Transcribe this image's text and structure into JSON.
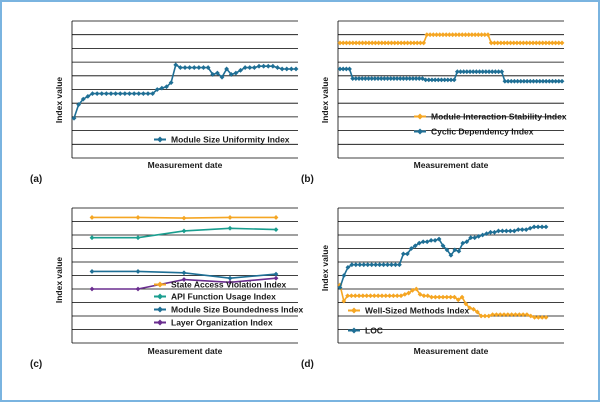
{
  "figure": {
    "border_color": "#7ab4e0",
    "panel_labels": [
      "(a)",
      "(b)",
      "(c)",
      "(d)"
    ]
  },
  "chart_data": [
    {
      "panel": "(a)",
      "type": "line",
      "xlabel": "Measurement date",
      "ylabel": "Index value",
      "grid": true,
      "legend_position": "bottom",
      "ylim": [
        0,
        10
      ],
      "series": [
        {
          "name": "Module Size Uniformity Index",
          "color": "#1f6f95",
          "marker": "diamond",
          "values": [
            2.9,
            3.9,
            4.3,
            4.5,
            4.7,
            4.7,
            4.7,
            4.7,
            4.7,
            4.7,
            4.7,
            4.7,
            4.7,
            4.7,
            4.7,
            4.7,
            4.7,
            4.7,
            5.0,
            5.1,
            5.2,
            5.5,
            6.8,
            6.6,
            6.6,
            6.6,
            6.6,
            6.6,
            6.6,
            6.6,
            6.1,
            6.2,
            5.9,
            6.5,
            6.1,
            6.2,
            6.4,
            6.6,
            6.6,
            6.6,
            6.7,
            6.7,
            6.7,
            6.7,
            6.6,
            6.5,
            6.5,
            6.5,
            6.5
          ]
        }
      ]
    },
    {
      "panel": "(b)",
      "type": "line",
      "xlabel": "Measurement date",
      "ylabel": "Index value",
      "grid": true,
      "legend_position": "bottom",
      "ylim": [
        0,
        10
      ],
      "series": [
        {
          "name": "Module Interaction Stability Index",
          "color": "#f5a623",
          "marker": "diamond",
          "values": [
            8.4,
            8.4,
            8.4,
            8.4,
            8.4,
            8.4,
            8.4,
            8.4,
            8.4,
            8.4,
            8.4,
            8.4,
            8.4,
            8.4,
            8.4,
            8.4,
            8.4,
            8.4,
            8.4,
            8.4,
            8.4,
            8.4,
            8.4,
            8.4,
            8.4,
            8.4,
            8.4,
            9.0,
            9.0,
            9.0,
            9.0,
            9.0,
            9.0,
            9.0,
            9.0,
            9.0,
            9.0,
            9.0,
            9.0,
            9.0,
            9.0,
            9.0,
            9.0,
            9.0,
            9.0,
            9.0,
            9.0,
            8.4,
            8.4,
            8.4,
            8.4,
            8.4,
            8.4,
            8.4,
            8.4,
            8.4,
            8.4,
            8.4,
            8.4,
            8.4,
            8.4,
            8.4,
            8.4,
            8.4,
            8.4,
            8.4,
            8.4,
            8.4,
            8.4,
            8.4
          ]
        },
        {
          "name": "Cyclic Dependency Index",
          "color": "#1f6f95",
          "marker": "diamond",
          "values": [
            6.5,
            6.5,
            6.5,
            6.5,
            5.8,
            5.8,
            5.8,
            5.8,
            5.8,
            5.8,
            5.8,
            5.8,
            5.8,
            5.8,
            5.8,
            5.8,
            5.8,
            5.8,
            5.8,
            5.8,
            5.8,
            5.8,
            5.8,
            5.8,
            5.8,
            5.8,
            5.8,
            5.7,
            5.7,
            5.7,
            5.7,
            5.7,
            5.7,
            5.7,
            5.7,
            5.7,
            5.7,
            6.3,
            6.3,
            6.3,
            6.3,
            6.3,
            6.3,
            6.3,
            6.3,
            6.3,
            6.3,
            6.3,
            6.3,
            6.3,
            6.3,
            6.3,
            5.6,
            5.6,
            5.6,
            5.6,
            5.6,
            5.6,
            5.6,
            5.6,
            5.6,
            5.6,
            5.6,
            5.6,
            5.6,
            5.6,
            5.6,
            5.6,
            5.6,
            5.6,
            5.6
          ]
        }
      ]
    },
    {
      "panel": "(c)",
      "type": "line",
      "xlabel": "Measurement date",
      "ylabel": "Index value",
      "grid": true,
      "legend_position": "bottom",
      "ylim": [
        0,
        10
      ],
      "series": [
        {
          "name": "State Access Violation Index",
          "color": "#f5a623",
          "marker": "diamond",
          "values": [
            9.3,
            9.3,
            9.25,
            9.3,
            9.3
          ]
        },
        {
          "name": "API Function Usage Index",
          "color": "#1a9e8f",
          "marker": "diamond",
          "values": [
            7.8,
            7.8,
            8.3,
            8.5,
            8.4
          ]
        },
        {
          "name": "Module Size Boundedness Index",
          "color": "#1f6f95",
          "marker": "diamond",
          "values": [
            5.3,
            5.3,
            5.2,
            4.8,
            5.1
          ]
        },
        {
          "name": "Layer Organization Index",
          "color": "#6a2d8f",
          "marker": "diamond",
          "values": [
            4.0,
            4.0,
            4.7,
            4.5,
            4.8
          ]
        }
      ]
    },
    {
      "panel": "(d)",
      "type": "line",
      "xlabel": "Measurement date",
      "ylabel": "Index value",
      "grid": true,
      "legend_position": "bottom",
      "ylim": [
        0,
        10
      ],
      "series": [
        {
          "name": "Well-Sized Methods Index",
          "color": "#f5a623",
          "marker": "diamond",
          "values": [
            4.3,
            3.1,
            3.5,
            3.5,
            3.5,
            3.5,
            3.5,
            3.5,
            3.5,
            3.5,
            3.5,
            3.5,
            3.5,
            3.5,
            3.5,
            3.5,
            3.5,
            3.6,
            3.7,
            3.9,
            4.0,
            3.6,
            3.5,
            3.5,
            3.4,
            3.4,
            3.4,
            3.4,
            3.4,
            3.4,
            3.4,
            3.2,
            3.4,
            2.9,
            2.6,
            2.5,
            2.3,
            2.0,
            2.0,
            2.0,
            2.1,
            2.1,
            2.1,
            2.1,
            2.1,
            2.1,
            2.1,
            2.1,
            2.1,
            2.1,
            2.0,
            1.9,
            1.9,
            1.9,
            1.9
          ]
        },
        {
          "name": "LOC",
          "color": "#1f6f95",
          "marker": "diamond",
          "values": [
            4.1,
            5.0,
            5.6,
            5.8,
            5.8,
            5.8,
            5.8,
            5.8,
            5.8,
            5.8,
            5.8,
            5.8,
            5.8,
            5.8,
            5.8,
            5.8,
            6.6,
            6.6,
            7.0,
            7.2,
            7.4,
            7.5,
            7.5,
            7.6,
            7.6,
            7.7,
            7.2,
            6.9,
            6.5,
            6.9,
            6.8,
            7.4,
            7.5,
            7.8,
            7.8,
            7.9,
            8.0,
            8.1,
            8.2,
            8.2,
            8.3,
            8.3,
            8.3,
            8.3,
            8.3,
            8.4,
            8.4,
            8.4,
            8.5,
            8.6,
            8.6,
            8.6,
            8.6
          ]
        }
      ]
    }
  ]
}
